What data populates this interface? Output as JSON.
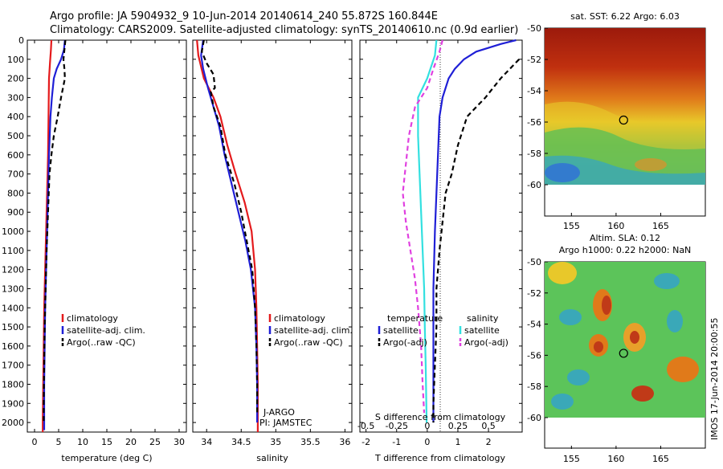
{
  "title_line1": "Argo profile: JA 5904932_9 10-Jun-2014 20140614_240 55.872S 160.844E",
  "title_line2": "Climatology: CARS2009. Satellite-adjusted climatology: synTS_20140610.nc (0.9d earlier)",
  "sst_title": "sat. SST: 6.22 Argo: 6.03",
  "sla_title_line1": "Altim. SLA: 0.12",
  "sla_title_line2": "Argo h1000: 0.22 h2000: NaN",
  "timestamp": "IMOS 17-Jun-2014 20:00:55",
  "float_info_1": "J-ARGO",
  "float_info_2": "PI: JAMSTEC",
  "colors": {
    "climatology": "#e41a1c",
    "satellite": "#1f1fd6",
    "argo": "#000000",
    "sal_satellite": "#33e0e0",
    "sal_argo": "#e040e0"
  },
  "chart_data": [
    {
      "type": "line",
      "panel": "temperature",
      "xlabel": "temperature (deg C)",
      "ylabel": "",
      "xlim": [
        -1.5,
        31.5
      ],
      "ylim": [
        2050,
        0
      ],
      "xticks": [
        0,
        5,
        10,
        15,
        20,
        25,
        30
      ],
      "yticks": [
        0,
        100,
        200,
        300,
        400,
        500,
        600,
        700,
        800,
        900,
        1000,
        1100,
        1200,
        1300,
        1400,
        1500,
        1600,
        1700,
        1800,
        1900,
        2000
      ],
      "legend": [
        {
          "label": "climatology",
          "color": "#e41a1c",
          "dash": "none"
        },
        {
          "label": "satellite-adj. clim.",
          "color": "#1f1fd6",
          "dash": "none"
        },
        {
          "label": "Argo(..raw -QC)",
          "color": "#000000",
          "dash": "6,4"
        }
      ],
      "series": [
        {
          "name": "climatology",
          "color": "#e41a1c",
          "dash": "none",
          "points": [
            [
              3.5,
              0
            ],
            [
              3.4,
              50
            ],
            [
              3.2,
              120
            ],
            [
              3.0,
              200
            ],
            [
              2.9,
              400
            ],
            [
              2.8,
              600
            ],
            [
              2.6,
              800
            ],
            [
              2.4,
              1000
            ],
            [
              2.2,
              1200
            ],
            [
              2.0,
              1400
            ],
            [
              1.9,
              1600
            ],
            [
              1.8,
              1800
            ],
            [
              1.7,
              2000
            ],
            [
              1.7,
              2050
            ]
          ]
        },
        {
          "name": "satellite-adj. clim.",
          "color": "#1f1fd6",
          "dash": "none",
          "points": [
            [
              6.3,
              0
            ],
            [
              6.1,
              50
            ],
            [
              5.5,
              100
            ],
            [
              4.6,
              150
            ],
            [
              4.0,
              200
            ],
            [
              3.6,
              300
            ],
            [
              3.3,
              400
            ],
            [
              3.0,
              600
            ],
            [
              2.8,
              800
            ],
            [
              2.6,
              1000
            ],
            [
              2.4,
              1200
            ],
            [
              2.2,
              1400
            ],
            [
              2.1,
              1600
            ],
            [
              2.0,
              1800
            ],
            [
              2.0,
              2000
            ],
            [
              2.0,
              2040
            ]
          ]
        },
        {
          "name": "Argo(..raw -QC)",
          "color": "#000000",
          "dash": "6,4",
          "points": [
            [
              6.4,
              0
            ],
            [
              6.0,
              100
            ],
            [
              6.2,
              150
            ],
            [
              6.3,
              200
            ],
            [
              5.5,
              300
            ],
            [
              4.8,
              400
            ],
            [
              4.0,
              500
            ],
            [
              3.5,
              600
            ],
            [
              3.1,
              700
            ],
            [
              2.8,
              900
            ],
            [
              2.5,
              1100
            ],
            [
              2.3,
              1300
            ],
            [
              2.1,
              1500
            ],
            [
              2.0,
              1700
            ],
            [
              1.9,
              1900
            ],
            [
              1.9,
              2000
            ]
          ]
        }
      ]
    },
    {
      "type": "line",
      "panel": "salinity",
      "xlabel": "salinity",
      "ylabel": "",
      "xlim": [
        33.8,
        36.1
      ],
      "ylim": [
        2050,
        0
      ],
      "xticks": [
        34,
        34.5,
        35,
        35.5,
        36
      ],
      "xticklabels": [
        "34",
        "34.5",
        "35",
        "35.5",
        "36"
      ],
      "legend": [
        {
          "label": "climatology",
          "color": "#e41a1c",
          "dash": "none"
        },
        {
          "label": "satellite-adj. clim.",
          "color": "#1f1fd6",
          "dash": "none"
        },
        {
          "label": "Argo(..raw -QC)",
          "color": "#000000",
          "dash": "6,4"
        }
      ],
      "series": [
        {
          "name": "climatology",
          "color": "#e41a1c",
          "dash": "none",
          "points": [
            [
              33.86,
              0
            ],
            [
              33.88,
              80
            ],
            [
              33.96,
              200
            ],
            [
              34.1,
              300
            ],
            [
              34.2,
              400
            ],
            [
              34.3,
              550
            ],
            [
              34.42,
              700
            ],
            [
              34.55,
              850
            ],
            [
              34.65,
              1000
            ],
            [
              34.7,
              1200
            ],
            [
              34.72,
              1400
            ],
            [
              34.73,
              1600
            ],
            [
              34.74,
              1800
            ],
            [
              34.74,
              2000
            ],
            [
              34.74,
              2050
            ]
          ]
        },
        {
          "name": "satellite-adj. clim.",
          "color": "#1f1fd6",
          "dash": "none",
          "points": [
            [
              33.95,
              0
            ],
            [
              33.92,
              80
            ],
            [
              33.95,
              150
            ],
            [
              34.02,
              250
            ],
            [
              34.1,
              350
            ],
            [
              34.18,
              450
            ],
            [
              34.26,
              600
            ],
            [
              34.36,
              750
            ],
            [
              34.46,
              900
            ],
            [
              34.56,
              1050
            ],
            [
              34.64,
              1200
            ],
            [
              34.7,
              1400
            ],
            [
              34.72,
              1600
            ],
            [
              34.73,
              1800
            ],
            [
              34.73,
              2000
            ]
          ]
        },
        {
          "name": "Argo(..raw -QC)",
          "color": "#000000",
          "dash": "6,4",
          "points": [
            [
              33.96,
              0
            ],
            [
              33.93,
              60
            ],
            [
              34.0,
              120
            ],
            [
              34.1,
              180
            ],
            [
              34.12,
              250
            ],
            [
              34.06,
              270
            ],
            [
              34.1,
              350
            ],
            [
              34.2,
              450
            ],
            [
              34.27,
              600
            ],
            [
              34.4,
              750
            ],
            [
              34.5,
              900
            ],
            [
              34.58,
              1050
            ],
            [
              34.66,
              1200
            ],
            [
              34.7,
              1400
            ],
            [
              34.72,
              1600
            ],
            [
              34.73,
              1800
            ],
            [
              34.73,
              1950
            ]
          ]
        }
      ]
    },
    {
      "type": "line",
      "panel": "difference",
      "xlabel": "T difference from climatology",
      "x2label": "S difference from climatology",
      "xlim": [
        -2.2,
        3.1
      ],
      "ylim": [
        2050,
        0
      ],
      "xticks": [
        -2,
        -1,
        0,
        1,
        2
      ],
      "x2ticks": [
        -0.5,
        -0.25,
        0,
        0.25,
        0.5
      ],
      "x2ticklabels": [
        "-0.5",
        "-0.25",
        "0",
        "0.25",
        "0.5"
      ],
      "legend": [
        {
          "group": "temperature",
          "label": "satellite",
          "color": "#1f1fd6",
          "dash": "none"
        },
        {
          "group": "temperature",
          "label": "Argo(-adj)",
          "color": "#000000",
          "dash": "6,4"
        },
        {
          "group": "salinity",
          "label": "satellite",
          "color": "#33e0e0",
          "dash": "none"
        },
        {
          "group": "salinity",
          "label": "Argo(-adj)",
          "color": "#e040e0",
          "dash": "6,4"
        }
      ],
      "legend_headers": [
        "temperature",
        "salinity"
      ],
      "series": [
        {
          "name": "T satellite",
          "color": "#1f1fd6",
          "dash": "none",
          "points": [
            [
              2.9,
              0
            ],
            [
              2.4,
              20
            ],
            [
              1.6,
              60
            ],
            [
              1.2,
              100
            ],
            [
              0.9,
              150
            ],
            [
              0.7,
              200
            ],
            [
              0.5,
              300
            ],
            [
              0.4,
              400
            ],
            [
              0.35,
              600
            ],
            [
              0.3,
              800
            ],
            [
              0.25,
              1000
            ],
            [
              0.2,
              1300
            ],
            [
              0.2,
              1600
            ],
            [
              0.2,
              1800
            ],
            [
              0.2,
              2000
            ]
          ]
        },
        {
          "name": "T Argo(-adj)",
          "color": "#000000",
          "dash": "6,4",
          "points": [
            [
              3.0,
              100
            ],
            [
              2.4,
              200
            ],
            [
              1.9,
              300
            ],
            [
              1.6,
              350
            ],
            [
              1.3,
              400
            ],
            [
              1.0,
              550
            ],
            [
              0.8,
              700
            ],
            [
              0.6,
              800
            ],
            [
              0.5,
              950
            ],
            [
              0.4,
              1100
            ],
            [
              0.3,
              1300
            ],
            [
              0.3,
              1500
            ],
            [
              0.25,
              1700
            ],
            [
              0.2,
              1900
            ],
            [
              0.2,
              2000
            ]
          ]
        },
        {
          "name": "S satellite",
          "color": "#33e0e0",
          "dash": "none",
          "points": [
            [
              0.3,
              0
            ],
            [
              0.25,
              80
            ],
            [
              0.0,
              200
            ],
            [
              -0.3,
              300
            ],
            [
              -0.3,
              500
            ],
            [
              -0.25,
              700
            ],
            [
              -0.2,
              900
            ],
            [
              -0.15,
              1100
            ],
            [
              -0.1,
              1300
            ],
            [
              -0.08,
              1500
            ],
            [
              -0.05,
              1700
            ],
            [
              -0.03,
              1900
            ],
            [
              -0.02,
              2000
            ]
          ]
        },
        {
          "name": "S Argo(-adj)",
          "color": "#e040e0",
          "dash": "6,4",
          "points": [
            [
              0.5,
              0
            ],
            [
              0.4,
              60
            ],
            [
              0.2,
              150
            ],
            [
              0.0,
              250
            ],
            [
              -0.4,
              350
            ],
            [
              -0.6,
              500
            ],
            [
              -0.7,
              650
            ],
            [
              -0.8,
              800
            ],
            [
              -0.7,
              950
            ],
            [
              -0.55,
              1100
            ],
            [
              -0.4,
              1250
            ],
            [
              -0.3,
              1400
            ],
            [
              -0.2,
              1600
            ],
            [
              -0.15,
              1800
            ],
            [
              -0.1,
              1950
            ]
          ]
        }
      ]
    },
    {
      "type": "heatmap",
      "panel": "sst_map",
      "title": "sat. SST: 6.22 Argo: 6.03",
      "xlim": [
        152,
        170
      ],
      "ylim": [
        -60,
        -50
      ],
      "xticks": [
        155,
        160,
        165
      ],
      "yticks": [
        -50,
        -52,
        -54,
        -56,
        -58,
        -60
      ],
      "marker": {
        "lon": 160.844,
        "lat": -55.872
      }
    },
    {
      "type": "heatmap",
      "panel": "sla_map",
      "title": "Altim. SLA: 0.12",
      "xlim": [
        152,
        170
      ],
      "ylim": [
        -60,
        -50
      ],
      "xticks": [
        155,
        160,
        165
      ],
      "yticks": [
        -50,
        -52,
        -54,
        -56,
        -58,
        -60
      ],
      "marker": {
        "lon": 160.844,
        "lat": -55.872
      }
    }
  ]
}
